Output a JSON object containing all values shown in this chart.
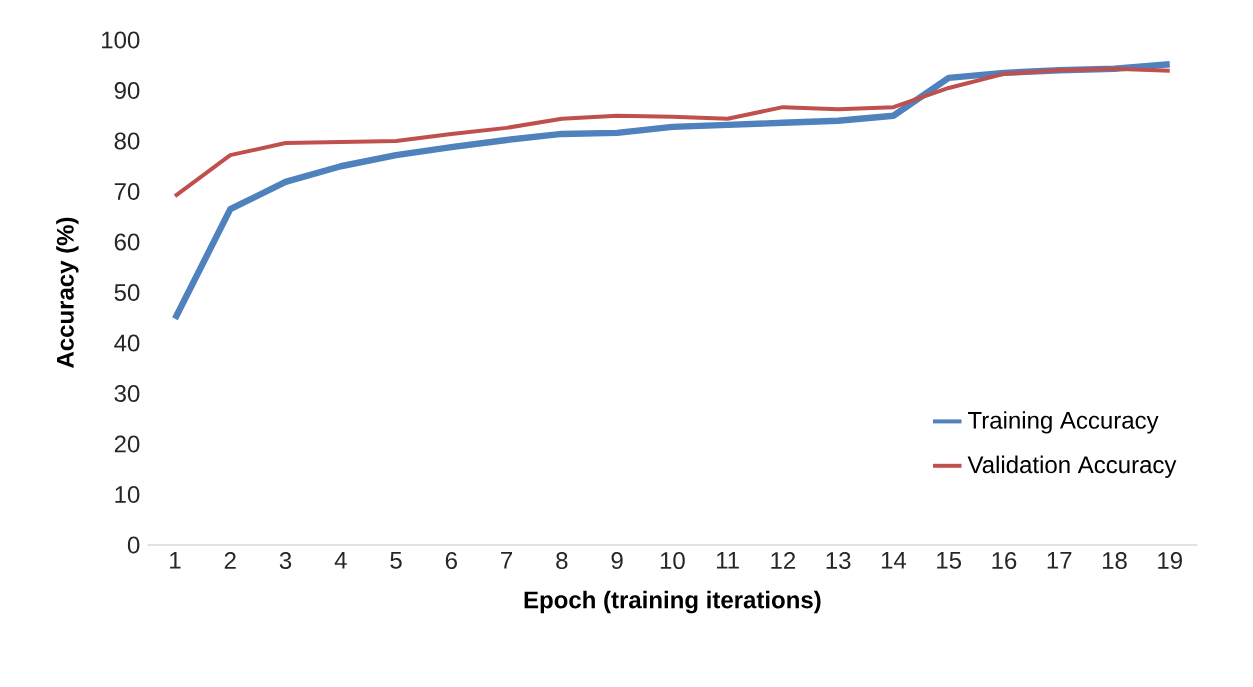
{
  "chart_data": {
    "type": "line",
    "xlabel": "Epoch (training iterations)",
    "ylabel": "Accuracy (%)",
    "categories": [
      "1",
      "2",
      "3",
      "4",
      "5",
      "6",
      "7",
      "8",
      "9",
      "10",
      "11",
      "12",
      "13",
      "14",
      "15",
      "16",
      "17",
      "18",
      "19"
    ],
    "series": [
      {
        "name": "Training Accuracy",
        "color": "#4f81bd",
        "values": [
          44.8,
          66.5,
          71.9,
          75,
          77.2,
          78.8,
          80.2,
          81.4,
          81.6,
          82.8,
          83.2,
          83.6,
          84,
          85,
          92.5,
          93.5,
          94,
          94.3,
          95.2
        ]
      },
      {
        "name": "Validation Accuracy",
        "color": "#c0504d",
        "values": [
          69.1,
          77.2,
          79.6,
          79.8,
          80,
          81.4,
          82.6,
          84.4,
          85,
          84.8,
          84.4,
          86.7,
          86.3,
          86.7,
          90.5,
          93.3,
          94,
          94.3,
          93.9
        ]
      }
    ],
    "ylim": [
      0,
      100
    ],
    "yticks": [
      0,
      10,
      20,
      30,
      40,
      50,
      60,
      70,
      80,
      90,
      100
    ],
    "legend": "bottom right"
  }
}
